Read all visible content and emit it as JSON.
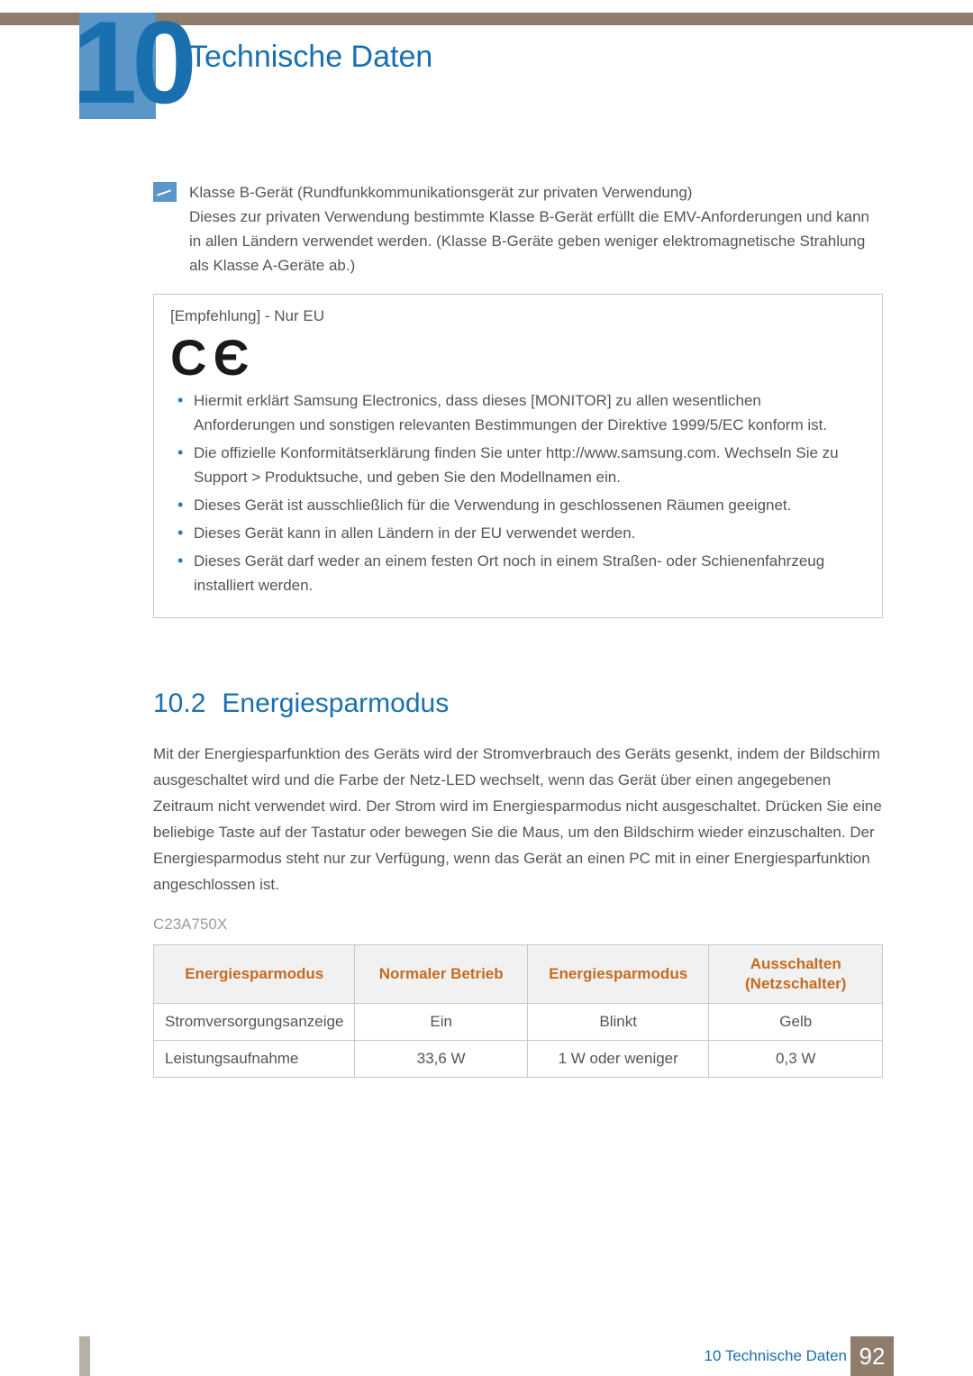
{
  "chapter": {
    "number": "10",
    "title": "Technische Daten"
  },
  "note": {
    "line1": "Klasse B-Gerät (Rundfunkkommunikationsgerät zur privaten Verwendung)",
    "line2": "Dieses zur privaten Verwendung bestimmte Klasse B-Gerät erfüllt die EMV-Anforderungen und kann in allen Ländern verwendet werden. (Klasse B-Geräte geben weniger elektromagnetische Strahlung als Klasse A-Geräte ab.)"
  },
  "eu_box": {
    "title": "[Empfehlung] - Nur EU",
    "ce_mark": "C Є",
    "items": [
      "Hiermit erklärt Samsung Electronics, dass dieses [MONITOR] zu allen wesentlichen Anforderungen und sonstigen relevanten Bestimmungen der Direktive 1999/5/EC konform ist.",
      "Die offizielle Konformitätserklärung finden Sie unter http://www.samsung.com. Wechseln Sie zu Support > Produktsuche, und geben Sie den Modellnamen ein.",
      "Dieses Gerät ist ausschließlich für die Verwendung in geschlossenen Räumen geeignet.",
      "Dieses Gerät kann in allen Ländern in der EU verwendet werden.",
      "Dieses Gerät darf weder an einem festen Ort noch in einem Straßen- oder Schienenfahrzeug installiert werden."
    ]
  },
  "section": {
    "number": "10.2",
    "title": "Energiesparmodus",
    "paragraph": "Mit der Energiesparfunktion des Geräts wird der Stromverbrauch des Geräts gesenkt, indem der Bildschirm ausgeschaltet wird und die Farbe der Netz-LED wechselt, wenn das Gerät über einen angegebenen Zeitraum nicht verwendet wird. Der Strom wird im Energiesparmodus nicht ausgeschaltet. Drücken Sie eine beliebige Taste auf der Tastatur oder bewegen Sie die Maus, um den Bildschirm wieder einzuschalten. Der Energiesparmodus steht nur zur Verfügung, wenn das Gerät an einen PC mit in einer Energiesparfunktion angeschlossen ist.",
    "model": "C23A750X"
  },
  "table": {
    "headers": [
      "Energiesparmodus",
      "Normaler Betrieb",
      "Energiesparmodus",
      "Ausschalten (Netzschalter)"
    ],
    "header_bg": "#f1f1f1",
    "header_color": "#c46a1f",
    "border_color": "#c8c8c8",
    "col_widths": [
      "27%",
      "24%",
      "25%",
      "24%"
    ],
    "rows": [
      {
        "label": "Stromversorgungsanzeige",
        "cells": [
          "Ein",
          "Blinkt",
          "Gelb"
        ]
      },
      {
        "label": "Leistungsaufnahme",
        "cells": [
          "33,6 W",
          "1 W oder weniger",
          "0,3 W"
        ]
      }
    ]
  },
  "footer": {
    "text": "10 Technische Daten",
    "page": "92",
    "page_bg": "#8d7d6a",
    "accent_bg": "#b7b0a5"
  },
  "colors": {
    "heading": "#1a6fae",
    "chapter_block": "#5a96c8",
    "top_bar": "#8d7d6a",
    "body_text": "#555555",
    "bullet": "#2a78b8"
  }
}
